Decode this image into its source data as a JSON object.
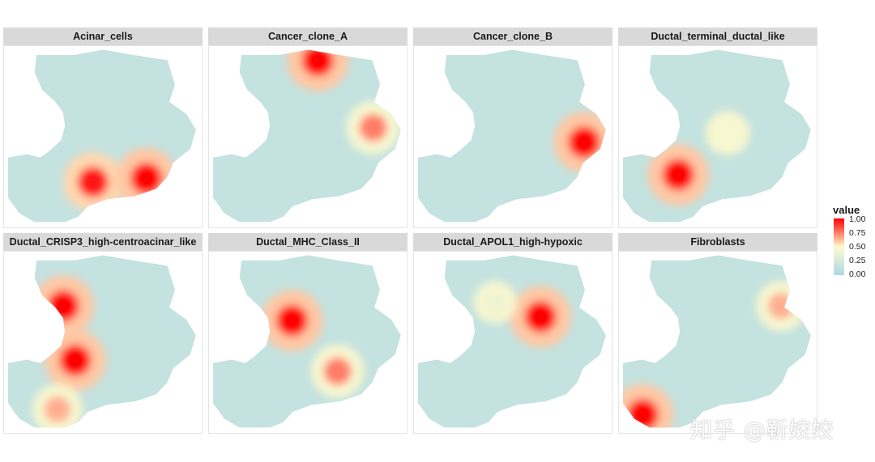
{
  "chart_data": {
    "type": "heatmap",
    "subtype": "spatial spot map (faceted)",
    "facets": [
      {
        "title": "Acinar_cells",
        "hotspots": [
          {
            "x": 0.45,
            "y": 0.75,
            "value": 0.95,
            "label": "lower-center"
          },
          {
            "x": 0.72,
            "y": 0.73,
            "value": 1.0,
            "label": "lower-right of tissue"
          }
        ]
      },
      {
        "title": "Cancer_clone_A",
        "hotspots": [
          {
            "x": 0.55,
            "y": 0.08,
            "value": 1.0,
            "label": "top edge"
          },
          {
            "x": 0.83,
            "y": 0.45,
            "value": 0.75,
            "label": "right edge"
          }
        ]
      },
      {
        "title": "Cancer_clone_B",
        "hotspots": [
          {
            "x": 0.86,
            "y": 0.53,
            "value": 1.0,
            "label": "right edge"
          }
        ]
      },
      {
        "title": "Ductal_terminal_ductal_like",
        "hotspots": [
          {
            "x": 0.3,
            "y": 0.71,
            "value": 1.0,
            "label": "left"
          },
          {
            "x": 0.55,
            "y": 0.48,
            "value": 0.45,
            "label": "center"
          }
        ]
      },
      {
        "title": "Ductal_CRISP3_high-centroacinar_like",
        "hotspots": [
          {
            "x": 0.3,
            "y": 0.3,
            "value": 1.0,
            "label": "upper-left"
          },
          {
            "x": 0.36,
            "y": 0.6,
            "value": 1.0,
            "label": "center-left"
          },
          {
            "x": 0.27,
            "y": 0.87,
            "value": 0.65,
            "label": "lower-left"
          }
        ]
      },
      {
        "title": "Ductal_MHC_Class_II",
        "hotspots": [
          {
            "x": 0.42,
            "y": 0.38,
            "value": 1.0,
            "label": "upper-center"
          },
          {
            "x": 0.65,
            "y": 0.66,
            "value": 0.75,
            "label": "lower-center"
          }
        ]
      },
      {
        "title": "Ductal_APOL1_high-hypoxic",
        "hotspots": [
          {
            "x": 0.64,
            "y": 0.36,
            "value": 1.0,
            "label": "center"
          },
          {
            "x": 0.41,
            "y": 0.28,
            "value": 0.4,
            "label": "upper-left"
          }
        ]
      },
      {
        "title": "Fibroblasts",
        "hotspots": [
          {
            "x": 0.12,
            "y": 0.9,
            "value": 1.0,
            "label": "lower-left"
          },
          {
            "x": 0.82,
            "y": 0.3,
            "value": 0.65,
            "label": "right"
          }
        ]
      }
    ],
    "legend": {
      "title": "value",
      "ticks": [
        "1.00",
        "0.75",
        "0.50",
        "0.25",
        "0.00"
      ],
      "colormap": {
        "low": "#add8e6",
        "mid": "#fffacd",
        "high": "#ff0000"
      },
      "range": [
        0,
        1
      ],
      "placement": "right"
    },
    "grid": false
  },
  "watermark": "知乎 @靳姣姣"
}
